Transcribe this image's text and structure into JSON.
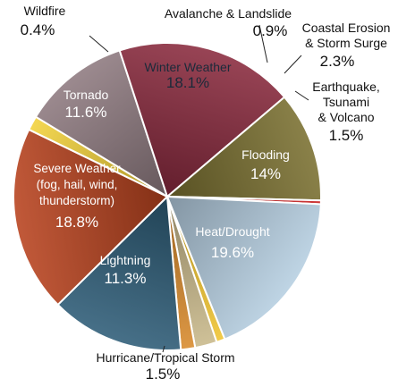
{
  "chart_data": {
    "type": "pie",
    "title": "",
    "slices": [
      {
        "label": "Avalanche & Landslide",
        "value": 0.9,
        "display": "0.9%",
        "color": "#f0c430"
      },
      {
        "label": "Coastal Erosion & Storm Surge",
        "value": 2.3,
        "display": "2.3%",
        "color": "#c8b88a"
      },
      {
        "label": "Earthquake, Tsunami & Volcano",
        "value": 1.5,
        "display": "1.5%",
        "color": "#d88a2c"
      },
      {
        "label": "Flooding",
        "value": 14,
        "display": "14%",
        "color": "#2e5d78"
      },
      {
        "label": "Heat/Drought",
        "value": 19.6,
        "display": "19.6%",
        "color": "#b8421e"
      },
      {
        "label": "Hurricane/Tropical Storm",
        "value": 1.5,
        "display": "1.5%",
        "color": "#f2d23a"
      },
      {
        "label": "Lightning",
        "value": 11.3,
        "display": "11.3%",
        "color": "#8e7a80"
      },
      {
        "label": "Severe Weather (fog, hail, wind, thunderstorm)",
        "value": 18.8,
        "display": "18.8%",
        "color": "#8a2a3e"
      },
      {
        "label": "Tornado",
        "value": 11.6,
        "display": "11.6%",
        "color": "#7a7030"
      },
      {
        "label": "Wildfire",
        "value": 0.4,
        "display": "0.4%",
        "color": "#c81e1e"
      },
      {
        "label": "Winter Weather",
        "value": 18.1,
        "display": "18.1%",
        "color": "#b6cfe2"
      }
    ]
  }
}
